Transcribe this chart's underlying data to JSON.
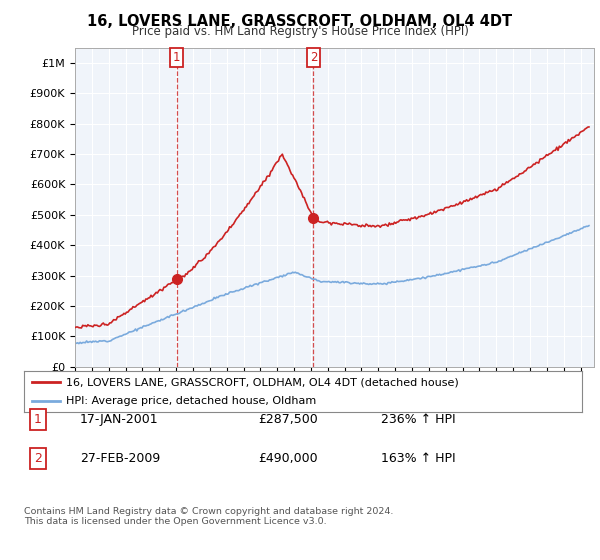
{
  "title": "16, LOVERS LANE, GRASSCROFT, OLDHAM, OL4 4DT",
  "subtitle": "Price paid vs. HM Land Registry's House Price Index (HPI)",
  "ylim": [
    0,
    1050000
  ],
  "yticks": [
    0,
    100000,
    200000,
    300000,
    400000,
    500000,
    600000,
    700000,
    800000,
    900000,
    1000000
  ],
  "ytick_labels": [
    "£0",
    "£100K",
    "£200K",
    "£300K",
    "£400K",
    "£500K",
    "£600K",
    "£700K",
    "£800K",
    "£900K",
    "£1M"
  ],
  "hpi_color": "#7aaadd",
  "price_color": "#cc2222",
  "legend_label_price": "16, LOVERS LANE, GRASSCROFT, OLDHAM, OL4 4DT (detached house)",
  "legend_label_hpi": "HPI: Average price, detached house, Oldham",
  "note1_date": "17-JAN-2001",
  "note1_price": "£287,500",
  "note1_pct": "236% ↑ HPI",
  "note2_date": "27-FEB-2009",
  "note2_price": "£490,000",
  "note2_pct": "163% ↑ HPI",
  "footer": "Contains HM Land Registry data © Crown copyright and database right 2024.\nThis data is licensed under the Open Government Licence v3.0.",
  "sale1_x": 2001.04,
  "sale1_y": 287500,
  "sale2_x": 2009.15,
  "sale2_y": 490000,
  "xmin": 1995.0,
  "xmax": 2025.8,
  "bg_color": "#f0f4fa"
}
